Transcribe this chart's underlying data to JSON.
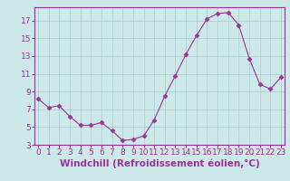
{
  "x": [
    0,
    1,
    2,
    3,
    4,
    5,
    6,
    7,
    8,
    9,
    10,
    11,
    12,
    13,
    14,
    15,
    16,
    17,
    18,
    19,
    20,
    21,
    22,
    23
  ],
  "y": [
    8.2,
    7.2,
    7.4,
    6.2,
    5.2,
    5.2,
    5.5,
    4.6,
    3.5,
    3.6,
    4.0,
    5.8,
    8.5,
    10.8,
    13.2,
    15.3,
    17.2,
    17.8,
    17.9,
    16.5,
    12.7,
    9.8,
    9.3,
    10.6
  ],
  "line_color": "#993399",
  "marker": "D",
  "marker_size": 2.5,
  "bg_color": "#cce8e8",
  "grid_color": "#aacccc",
  "xlabel": "Windchill (Refroidissement éolien,°C)",
  "ylim_min": 3,
  "ylim_max": 18,
  "xlim_min": 0,
  "xlim_max": 23,
  "yticks": [
    3,
    5,
    7,
    9,
    11,
    13,
    15,
    17
  ],
  "xticks": [
    0,
    1,
    2,
    3,
    4,
    5,
    6,
    7,
    8,
    9,
    10,
    11,
    12,
    13,
    14,
    15,
    16,
    17,
    18,
    19,
    20,
    21,
    22,
    23
  ],
  "tick_color": "#993399",
  "label_color": "#993399",
  "spine_color": "#993399",
  "xlabel_fontsize": 7.5,
  "tick_fontsize": 6.5
}
